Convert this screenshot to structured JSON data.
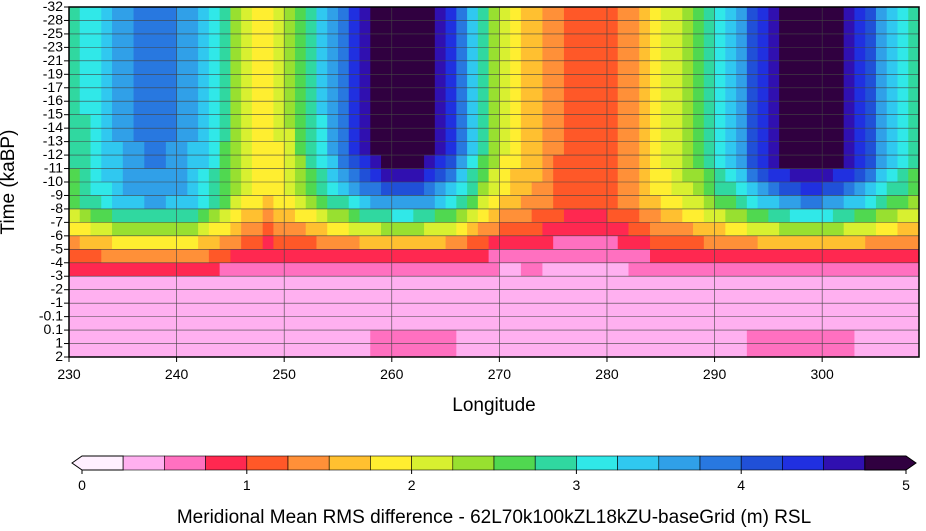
{
  "chart_data": {
    "type": "heatmap",
    "xlabel": "Longitude",
    "ylabel": "Time (kaBP)",
    "x_ticks": [
      230,
      240,
      250,
      260,
      270,
      280,
      290,
      300
    ],
    "xlim": [
      230,
      309
    ],
    "y_ticks": [
      "-32",
      "-28",
      "-25",
      "-23",
      "-21",
      "-19",
      "-17",
      "-16",
      "-15",
      "-14",
      "-13",
      "-12",
      "-11",
      "-10",
      "-9",
      "-8",
      "-7",
      "-6",
      "-5",
      "-4",
      "-3",
      "-2",
      "-1",
      "-0.1",
      "0.1",
      "1",
      "2"
    ],
    "colorbar": {
      "label": "Meridional Mean RMS difference - 62L70k100kZL18kZU-baseGrid (m) RSL",
      "ticks": [
        "0",
        "1",
        "2",
        "3",
        "4",
        "5"
      ],
      "range": [
        0,
        5
      ],
      "levels": 22,
      "colors": [
        "#fff0ff",
        "#ffb0f0",
        "#ff70c0",
        "#ff2850",
        "#ff5828",
        "#ff9038",
        "#ffc030",
        "#ffee30",
        "#d8f030",
        "#98e030",
        "#50d850",
        "#30d8a0",
        "#30e8e8",
        "#30c8f0",
        "#30a0e8",
        "#2878e0",
        "#2050d8",
        "#2030e0",
        "#3010b0",
        "#300040"
      ]
    },
    "grid": true,
    "features": {
      "blue_minimum": {
        "lon": 238,
        "time_index": 7,
        "value": 3.5
      },
      "dark_regions_lon": [
        [
          256,
          268
        ],
        [
          294,
          304
        ]
      ],
      "values_description_only": false
    }
  }
}
